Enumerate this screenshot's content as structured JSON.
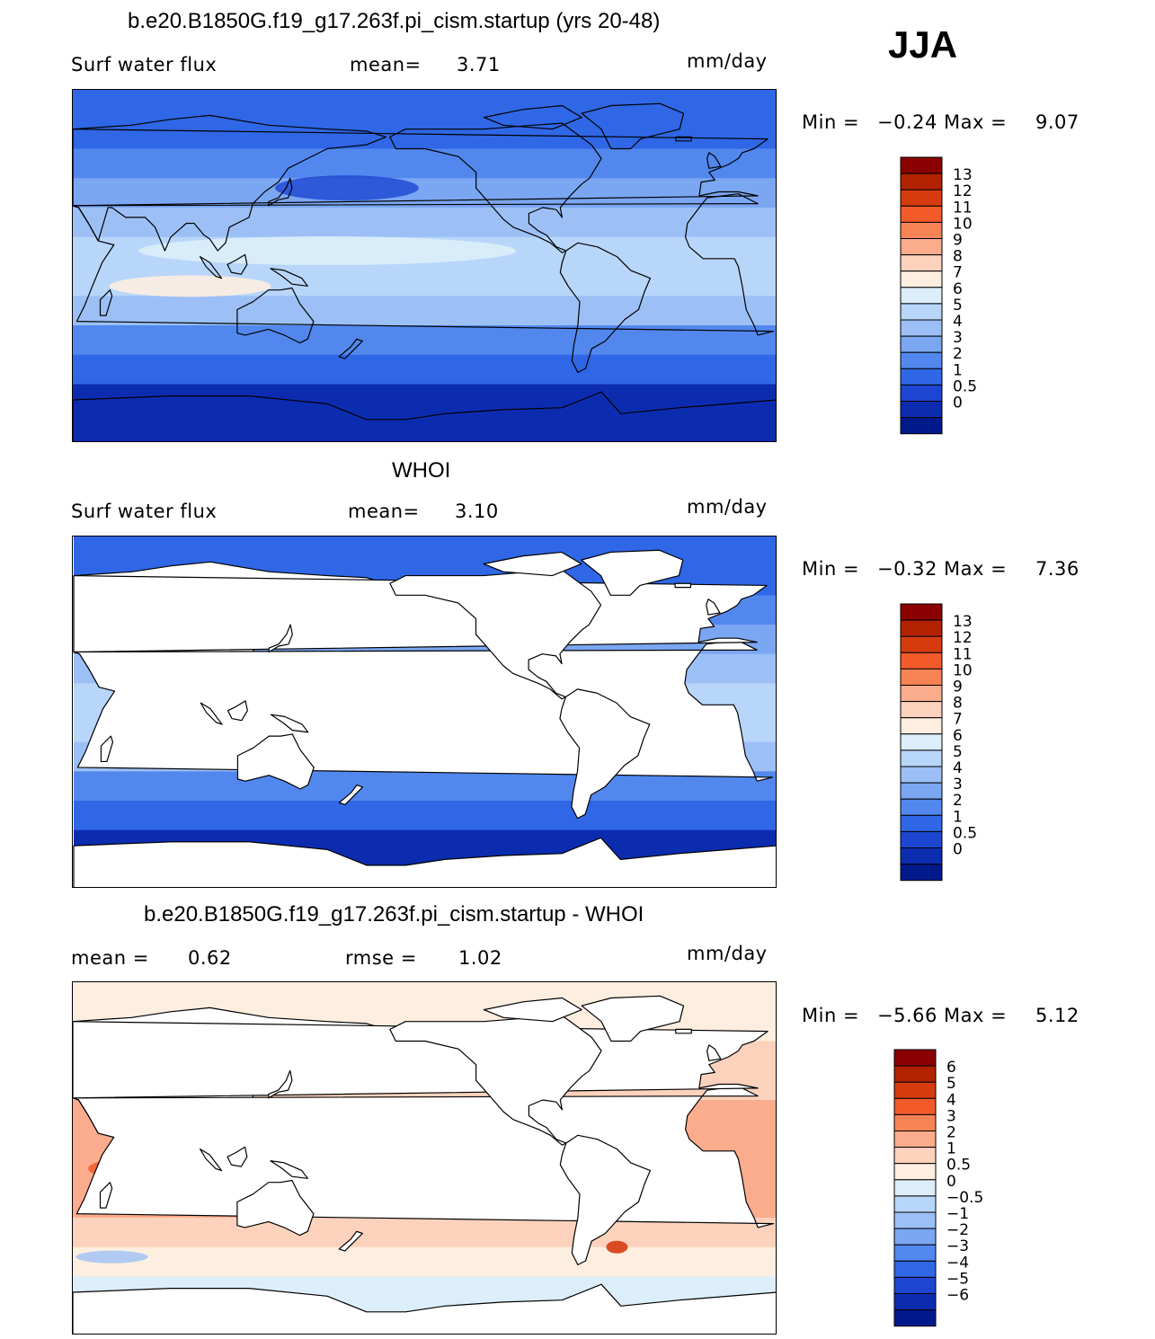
{
  "season": "JJA",
  "panels": [
    {
      "title": "b.e20.B1850G.f19_g17.263f.pi_cism.startup (yrs 20-48)",
      "stat1_label": "Surf water flux",
      "stat2_label": "mean=",
      "stat2_value": "3.71",
      "units": "mm/day",
      "min_label": "Min =",
      "min_value": "−0.24",
      "max_label": "Max =",
      "max_value": "9.07",
      "colorbar": {
        "colors": [
          "#8b0000",
          "#b22200",
          "#d63b0f",
          "#f25a2a",
          "#f88456",
          "#fbac8c",
          "#fcd2bc",
          "#fdeee0",
          "#dceefa",
          "#b8d6fa",
          "#9cc0f6",
          "#7ba6f2",
          "#5288ee",
          "#2f67e6",
          "#1c46d2",
          "#0c2cb0",
          "#001a8c"
        ],
        "labels": [
          "13",
          "12",
          "11",
          "10",
          "9",
          "8",
          "7",
          "6",
          "5",
          "4",
          "3",
          "2",
          "1",
          "0.5",
          "0"
        ]
      },
      "land_masked": false
    },
    {
      "title": "WHOI",
      "stat1_label": "Surf water flux",
      "stat2_label": "mean=",
      "stat2_value": "3.10",
      "units": "mm/day",
      "min_label": "Min =",
      "min_value": "−0.32",
      "max_label": "Max =",
      "max_value": "7.36",
      "colorbar": {
        "colors": [
          "#8b0000",
          "#b22200",
          "#d63b0f",
          "#f25a2a",
          "#f88456",
          "#fbac8c",
          "#fcd2bc",
          "#fdeee0",
          "#dceefa",
          "#b8d6fa",
          "#9cc0f6",
          "#7ba6f2",
          "#5288ee",
          "#2f67e6",
          "#1c46d2",
          "#0c2cb0",
          "#001a8c"
        ],
        "labels": [
          "13",
          "12",
          "11",
          "10",
          "9",
          "8",
          "7",
          "6",
          "5",
          "4",
          "3",
          "2",
          "1",
          "0.5",
          "0"
        ]
      },
      "land_masked": true
    },
    {
      "title": "b.e20.B1850G.f19_g17.263f.pi_cism.startup - WHOI",
      "stat1_label": "mean =",
      "stat1_value": "0.62",
      "stat2_label": "rmse =",
      "stat2_value": "1.02",
      "units": "mm/day",
      "min_label": "Min =",
      "min_value": "−5.66",
      "max_label": "Max =",
      "max_value": "5.12",
      "colorbar": {
        "colors": [
          "#8b0000",
          "#b22200",
          "#d63b0f",
          "#f25a2a",
          "#f88456",
          "#fbac8c",
          "#fcd2bc",
          "#fdeee0",
          "#dceefa",
          "#b8d6fa",
          "#9cc0f6",
          "#7ba6f2",
          "#5288ee",
          "#2f67e6",
          "#1c46d2",
          "#0c2cb0",
          "#001a8c"
        ],
        "labels": [
          "6",
          "5",
          "4",
          "3",
          "2",
          "1",
          "0.5",
          "0",
          "−0.5",
          "−1",
          "−2",
          "−3",
          "−4",
          "−5",
          "−6"
        ]
      },
      "land_masked": true
    }
  ],
  "chart_data": [
    {
      "type": "heatmap",
      "title": "b.e20.B1850G.f19_g17.263f.pi_cism.startup (yrs 20-48)",
      "variable": "Surf water flux",
      "units": "mm/day",
      "mean": 3.71,
      "min": -0.24,
      "max": 9.07,
      "contour_levels": [
        0,
        0.5,
        1,
        2,
        3,
        4,
        5,
        6,
        7,
        8,
        9,
        10,
        11,
        12,
        13
      ]
    },
    {
      "type": "heatmap",
      "title": "WHOI",
      "variable": "Surf water flux",
      "units": "mm/day",
      "mean": 3.1,
      "min": -0.32,
      "max": 7.36,
      "contour_levels": [
        0,
        0.5,
        1,
        2,
        3,
        4,
        5,
        6,
        7,
        8,
        9,
        10,
        11,
        12,
        13
      ]
    },
    {
      "type": "heatmap",
      "title": "b.e20.B1850G.f19_g17.263f.pi_cism.startup - WHOI",
      "units": "mm/day",
      "mean": 0.62,
      "rmse": 1.02,
      "min": -5.66,
      "max": 5.12,
      "contour_levels": [
        -6,
        -5,
        -4,
        -3,
        -2,
        -1,
        -0.5,
        0,
        0.5,
        1,
        2,
        3,
        4,
        5,
        6
      ]
    }
  ]
}
